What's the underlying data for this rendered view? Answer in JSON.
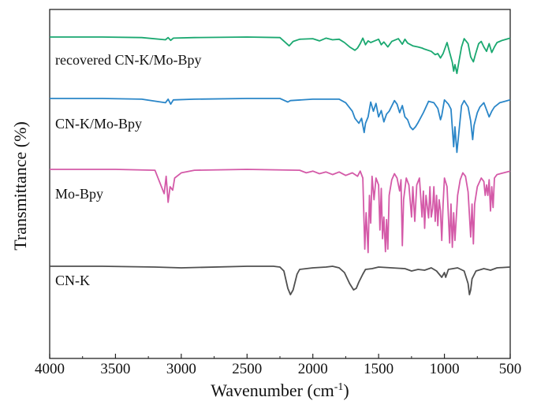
{
  "chart_data": {
    "type": "line",
    "xlabel": "Wavenumber (cm",
    "xlabel_sup": "-1",
    "xlabel_tail": ")",
    "ylabel": "Transmittance (%)",
    "xlim": [
      4000,
      500
    ],
    "x_reversed": true,
    "xticks": [
      4000,
      3500,
      3000,
      2500,
      2000,
      1500,
      1000,
      500
    ],
    "y_ticks_shown": false,
    "grid": false,
    "legend": "none (series labelled inline above each trace)",
    "stacked_offset": true,
    "series": [
      {
        "name": "recovered CN-K/Mo-Bpy",
        "color": "#1aa870",
        "baseline": 0,
        "points": [
          [
            4000,
            0
          ],
          [
            3600,
            0
          ],
          [
            3300,
            0.01
          ],
          [
            3120,
            0.05
          ],
          [
            3100,
            0.01
          ],
          [
            3080,
            0.06
          ],
          [
            3060,
            0.02
          ],
          [
            2900,
            0.01
          ],
          [
            2500,
            0
          ],
          [
            2250,
            0.01
          ],
          [
            2180,
            0.16
          ],
          [
            2150,
            0.08
          ],
          [
            2100,
            0.04
          ],
          [
            2000,
            0.03
          ],
          [
            1950,
            0.07
          ],
          [
            1900,
            0.02
          ],
          [
            1850,
            0.05
          ],
          [
            1800,
            0.04
          ],
          [
            1760,
            0.1
          ],
          [
            1720,
            0.18
          ],
          [
            1680,
            0.24
          ],
          [
            1660,
            0.2
          ],
          [
            1640,
            0.12
          ],
          [
            1620,
            0.02
          ],
          [
            1600,
            0.14
          ],
          [
            1580,
            0.07
          ],
          [
            1560,
            0.1
          ],
          [
            1540,
            0.08
          ],
          [
            1500,
            0.04
          ],
          [
            1480,
            0.14
          ],
          [
            1460,
            0.09
          ],
          [
            1430,
            0.18
          ],
          [
            1400,
            0.08
          ],
          [
            1350,
            0.03
          ],
          [
            1320,
            0.13
          ],
          [
            1300,
            0.04
          ],
          [
            1280,
            0.11
          ],
          [
            1240,
            0.16
          ],
          [
            1200,
            0.18
          ],
          [
            1170,
            0.2
          ],
          [
            1150,
            0.22
          ],
          [
            1100,
            0.26
          ],
          [
            1070,
            0.32
          ],
          [
            1050,
            0.3
          ],
          [
            1030,
            0.38
          ],
          [
            1010,
            0.3
          ],
          [
            980,
            0.1
          ],
          [
            960,
            0.28
          ],
          [
            940,
            0.46
          ],
          [
            930,
            0.62
          ],
          [
            920,
            0.5
          ],
          [
            905,
            0.66
          ],
          [
            890,
            0.45
          ],
          [
            870,
            0.18
          ],
          [
            850,
            0.03
          ],
          [
            820,
            0.12
          ],
          [
            800,
            0.36
          ],
          [
            780,
            0.45
          ],
          [
            765,
            0.32
          ],
          [
            740,
            0.12
          ],
          [
            720,
            0.08
          ],
          [
            700,
            0.18
          ],
          [
            680,
            0.26
          ],
          [
            660,
            0.12
          ],
          [
            640,
            0.28
          ],
          [
            620,
            0.18
          ],
          [
            600,
            0.1
          ],
          [
            560,
            0.06
          ],
          [
            500,
            0.02
          ]
        ]
      },
      {
        "name": "CN-K/Mo-Bpy",
        "color": "#2a86c8",
        "baseline": 0,
        "points": [
          [
            4000,
            0
          ],
          [
            3600,
            0
          ],
          [
            3300,
            0.01
          ],
          [
            3120,
            0.06
          ],
          [
            3100,
            0.01
          ],
          [
            3080,
            0.08
          ],
          [
            3060,
            0.02
          ],
          [
            2900,
            0.01
          ],
          [
            2500,
            0
          ],
          [
            2250,
            0
          ],
          [
            2190,
            0.05
          ],
          [
            2170,
            0.03
          ],
          [
            2000,
            0.01
          ],
          [
            1800,
            0.01
          ],
          [
            1750,
            0.06
          ],
          [
            1700,
            0.18
          ],
          [
            1680,
            0.28
          ],
          [
            1650,
            0.35
          ],
          [
            1630,
            0.28
          ],
          [
            1610,
            0.48
          ],
          [
            1600,
            0.35
          ],
          [
            1580,
            0.26
          ],
          [
            1560,
            0.05
          ],
          [
            1540,
            0.18
          ],
          [
            1520,
            0.07
          ],
          [
            1500,
            0.26
          ],
          [
            1480,
            0.17
          ],
          [
            1460,
            0.33
          ],
          [
            1440,
            0.22
          ],
          [
            1420,
            0.18
          ],
          [
            1380,
            0.03
          ],
          [
            1360,
            0.08
          ],
          [
            1340,
            0.2
          ],
          [
            1320,
            0.1
          ],
          [
            1300,
            0.26
          ],
          [
            1280,
            0.3
          ],
          [
            1260,
            0.4
          ],
          [
            1240,
            0.44
          ],
          [
            1220,
            0.4
          ],
          [
            1200,
            0.34
          ],
          [
            1160,
            0.2
          ],
          [
            1120,
            0.04
          ],
          [
            1080,
            0.06
          ],
          [
            1050,
            0.14
          ],
          [
            1030,
            0.3
          ],
          [
            1020,
            0.24
          ],
          [
            1000,
            0.02
          ],
          [
            970,
            0.08
          ],
          [
            950,
            0.15
          ],
          [
            930,
            0.68
          ],
          [
            920,
            0.4
          ],
          [
            905,
            0.76
          ],
          [
            890,
            0.48
          ],
          [
            870,
            0.1
          ],
          [
            850,
            0.03
          ],
          [
            820,
            0.12
          ],
          [
            800,
            0.32
          ],
          [
            785,
            0.58
          ],
          [
            775,
            0.38
          ],
          [
            750,
            0.2
          ],
          [
            730,
            0.12
          ],
          [
            700,
            0.06
          ],
          [
            680,
            0.16
          ],
          [
            660,
            0.26
          ],
          [
            640,
            0.18
          ],
          [
            620,
            0.12
          ],
          [
            580,
            0.06
          ],
          [
            500,
            0.02
          ]
        ]
      },
      {
        "name": "Mo-Bpy",
        "color": "#d45aa8",
        "baseline": 0,
        "points": [
          [
            4000,
            0
          ],
          [
            3500,
            0
          ],
          [
            3200,
            0.01
          ],
          [
            3130,
            0.28
          ],
          [
            3115,
            0.08
          ],
          [
            3100,
            0.38
          ],
          [
            3085,
            0.2
          ],
          [
            3065,
            0.24
          ],
          [
            3050,
            0.1
          ],
          [
            3000,
            0.04
          ],
          [
            2900,
            0.01
          ],
          [
            2500,
            0
          ],
          [
            2100,
            0.01
          ],
          [
            2050,
            0.04
          ],
          [
            2000,
            0.02
          ],
          [
            1950,
            0.05
          ],
          [
            1900,
            0.03
          ],
          [
            1850,
            0.06
          ],
          [
            1800,
            0.03
          ],
          [
            1750,
            0.07
          ],
          [
            1700,
            0.04
          ],
          [
            1660,
            0.08
          ],
          [
            1640,
            0.02
          ],
          [
            1620,
            0.1
          ],
          [
            1605,
            0.92
          ],
          [
            1595,
            0.5
          ],
          [
            1580,
            0.96
          ],
          [
            1570,
            0.3
          ],
          [
            1560,
            0.62
          ],
          [
            1550,
            0.08
          ],
          [
            1535,
            0.35
          ],
          [
            1520,
            0.1
          ],
          [
            1500,
            0.18
          ],
          [
            1490,
            0.7
          ],
          [
            1480,
            0.22
          ],
          [
            1470,
            0.8
          ],
          [
            1460,
            0.55
          ],
          [
            1448,
            0.95
          ],
          [
            1440,
            0.58
          ],
          [
            1430,
            0.92
          ],
          [
            1420,
            0.3
          ],
          [
            1400,
            0.12
          ],
          [
            1380,
            0.05
          ],
          [
            1360,
            0.1
          ],
          [
            1340,
            0.25
          ],
          [
            1330,
            0.12
          ],
          [
            1320,
            0.88
          ],
          [
            1310,
            0.35
          ],
          [
            1290,
            0.1
          ],
          [
            1270,
            0.18
          ],
          [
            1250,
            0.55
          ],
          [
            1240,
            0.2
          ],
          [
            1225,
            0.6
          ],
          [
            1210,
            0.18
          ],
          [
            1190,
            0.1
          ],
          [
            1170,
            0.55
          ],
          [
            1160,
            0.25
          ],
          [
            1150,
            0.68
          ],
          [
            1140,
            0.3
          ],
          [
            1120,
            0.56
          ],
          [
            1110,
            0.2
          ],
          [
            1100,
            0.55
          ],
          [
            1090,
            0.45
          ],
          [
            1080,
            0.2
          ],
          [
            1070,
            0.6
          ],
          [
            1060,
            0.3
          ],
          [
            1050,
            0.65
          ],
          [
            1040,
            0.35
          ],
          [
            1030,
            0.48
          ],
          [
            1020,
            0.82
          ],
          [
            1010,
            0.4
          ],
          [
            1000,
            0.1
          ],
          [
            980,
            0.2
          ],
          [
            960,
            0.85
          ],
          [
            950,
            0.4
          ],
          [
            940,
            0.9
          ],
          [
            930,
            0.5
          ],
          [
            920,
            0.82
          ],
          [
            900,
            0.3
          ],
          [
            880,
            0.12
          ],
          [
            860,
            0.04
          ],
          [
            840,
            0.08
          ],
          [
            820,
            0.26
          ],
          [
            800,
            0.78
          ],
          [
            790,
            0.4
          ],
          [
            780,
            0.86
          ],
          [
            770,
            0.4
          ],
          [
            750,
            0.2
          ],
          [
            720,
            0.1
          ],
          [
            700,
            0.14
          ],
          [
            690,
            0.3
          ],
          [
            680,
            0.18
          ],
          [
            670,
            0.3
          ],
          [
            660,
            0.12
          ],
          [
            650,
            0.48
          ],
          [
            640,
            0.2
          ],
          [
            630,
            0.44
          ],
          [
            620,
            0.1
          ],
          [
            600,
            0.06
          ],
          [
            500,
            0.02
          ]
        ]
      },
      {
        "name": "CN-K",
        "color": "#505050",
        "baseline": 0,
        "points": [
          [
            4000,
            0
          ],
          [
            3600,
            0
          ],
          [
            3200,
            0.01
          ],
          [
            3000,
            0.02
          ],
          [
            2500,
            0
          ],
          [
            2300,
            0
          ],
          [
            2250,
            0.01
          ],
          [
            2220,
            0.06
          ],
          [
            2190,
            0.28
          ],
          [
            2170,
            0.36
          ],
          [
            2150,
            0.3
          ],
          [
            2120,
            0.1
          ],
          [
            2100,
            0.04
          ],
          [
            2000,
            0.02
          ],
          [
            1900,
            0.01
          ],
          [
            1850,
            0
          ],
          [
            1800,
            0.02
          ],
          [
            1760,
            0.08
          ],
          [
            1720,
            0.22
          ],
          [
            1690,
            0.3
          ],
          [
            1670,
            0.28
          ],
          [
            1650,
            0.2
          ],
          [
            1620,
            0.1
          ],
          [
            1600,
            0.04
          ],
          [
            1550,
            0.03
          ],
          [
            1500,
            0.01
          ],
          [
            1400,
            0.02
          ],
          [
            1300,
            0.03
          ],
          [
            1250,
            0.06
          ],
          [
            1200,
            0.04
          ],
          [
            1150,
            0.05
          ],
          [
            1100,
            0.02
          ],
          [
            1060,
            0.06
          ],
          [
            1020,
            0.14
          ],
          [
            1000,
            0.08
          ],
          [
            990,
            0.14
          ],
          [
            970,
            0.04
          ],
          [
            900,
            0.02
          ],
          [
            850,
            0.06
          ],
          [
            820,
            0.22
          ],
          [
            810,
            0.36
          ],
          [
            800,
            0.3
          ],
          [
            790,
            0.16
          ],
          [
            760,
            0.06
          ],
          [
            700,
            0.03
          ],
          [
            650,
            0.05
          ],
          [
            600,
            0.02
          ],
          [
            500,
            0.01
          ]
        ]
      }
    ]
  }
}
